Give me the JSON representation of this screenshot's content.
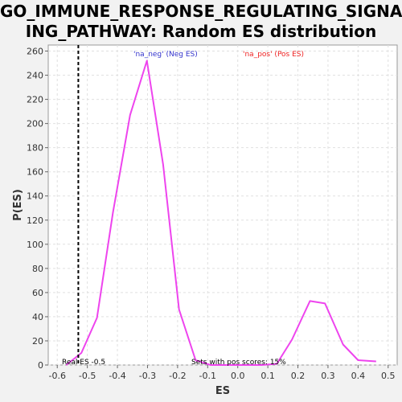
{
  "chart_data": {
    "type": "line",
    "title_line1": "GO_IMMUNE_RESPONSE_REGULATING_SIGNAL",
    "title_line2": "ING_PATHWAY: Random ES distribution",
    "xlabel": "ES",
    "ylabel": "P(ES)",
    "xlim": [
      -0.63,
      0.53
    ],
    "ylim": [
      0,
      265
    ],
    "x_ticks": [
      -0.6,
      -0.5,
      -0.4,
      -0.3,
      -0.2,
      -0.1,
      0.0,
      0.1,
      0.2,
      0.3,
      0.4,
      0.5
    ],
    "x_tick_labels": [
      "-0.6",
      "-0.5",
      "-0.4",
      "-0.3",
      "-0.2",
      "-0.1",
      "0.0",
      "0.1",
      "0.2",
      "0.3",
      "0.4",
      "0.5"
    ],
    "y_ticks": [
      0,
      20,
      40,
      60,
      80,
      100,
      120,
      140,
      160,
      180,
      200,
      220,
      240,
      260
    ],
    "y_tick_labels": [
      "0",
      "20",
      "40",
      "60",
      "80",
      "100",
      "120",
      "140",
      "160",
      "180",
      "200",
      "220",
      "240",
      "260"
    ],
    "grid": true,
    "series": [
      {
        "name": "Random ES",
        "color": "#ee44ee",
        "x": [
          -0.57,
          -0.52,
          -0.468,
          -0.415,
          -0.358,
          -0.302,
          -0.248,
          -0.195,
          -0.14,
          -0.09,
          -0.03,
          0.03,
          0.08,
          0.13,
          0.18,
          0.24,
          0.29,
          0.35,
          0.4,
          0.46
        ],
        "y": [
          0,
          10,
          39,
          126,
          207,
          252,
          166,
          46,
          4,
          0,
          0,
          0,
          0,
          1,
          21,
          53,
          51,
          17,
          4,
          3
        ]
      }
    ],
    "real_es": -0.53,
    "annotations": {
      "neg_label": "'na_neg' (Neg ES)",
      "pos_label": "'na_pos' (Pos ES)",
      "real_es_label": "Real ES -0.5",
      "pos_scores_label": "Sets with pos scores: 15%"
    },
    "colors": {
      "neg": "#3333cc",
      "pos": "#ee2222",
      "line": "#ee44ee",
      "grid": "#e0e0e0"
    }
  }
}
